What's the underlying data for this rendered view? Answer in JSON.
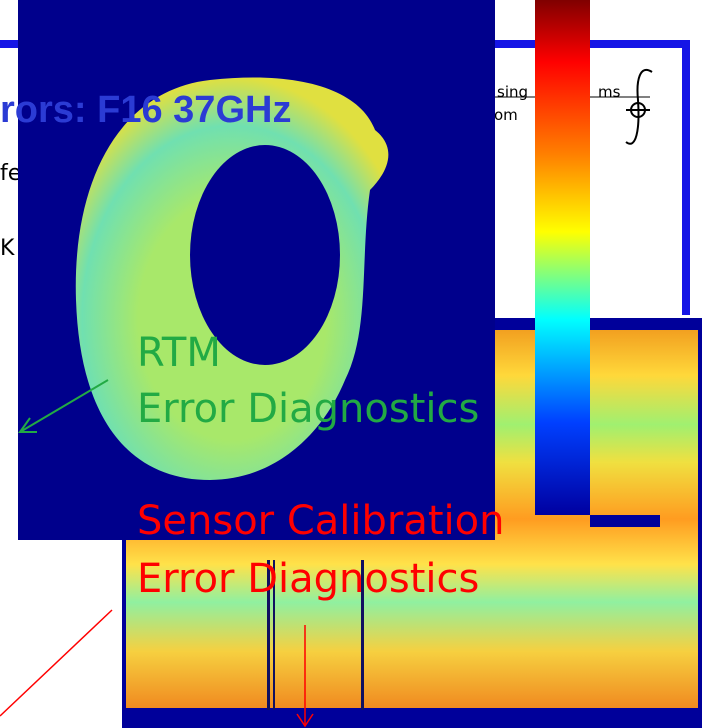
{
  "slide": {
    "title": "rors: F16 37GHz",
    "body_lines": [
      "fe",
      "K"
    ],
    "logo_text": [
      "sing",
      "ms",
      "om"
    ],
    "annotations": {
      "rtm": [
        "RTM",
        "Error Diagnostics"
      ],
      "sensor": [
        "Sensor Calibration",
        "Error Diagnostics"
      ]
    }
  }
}
